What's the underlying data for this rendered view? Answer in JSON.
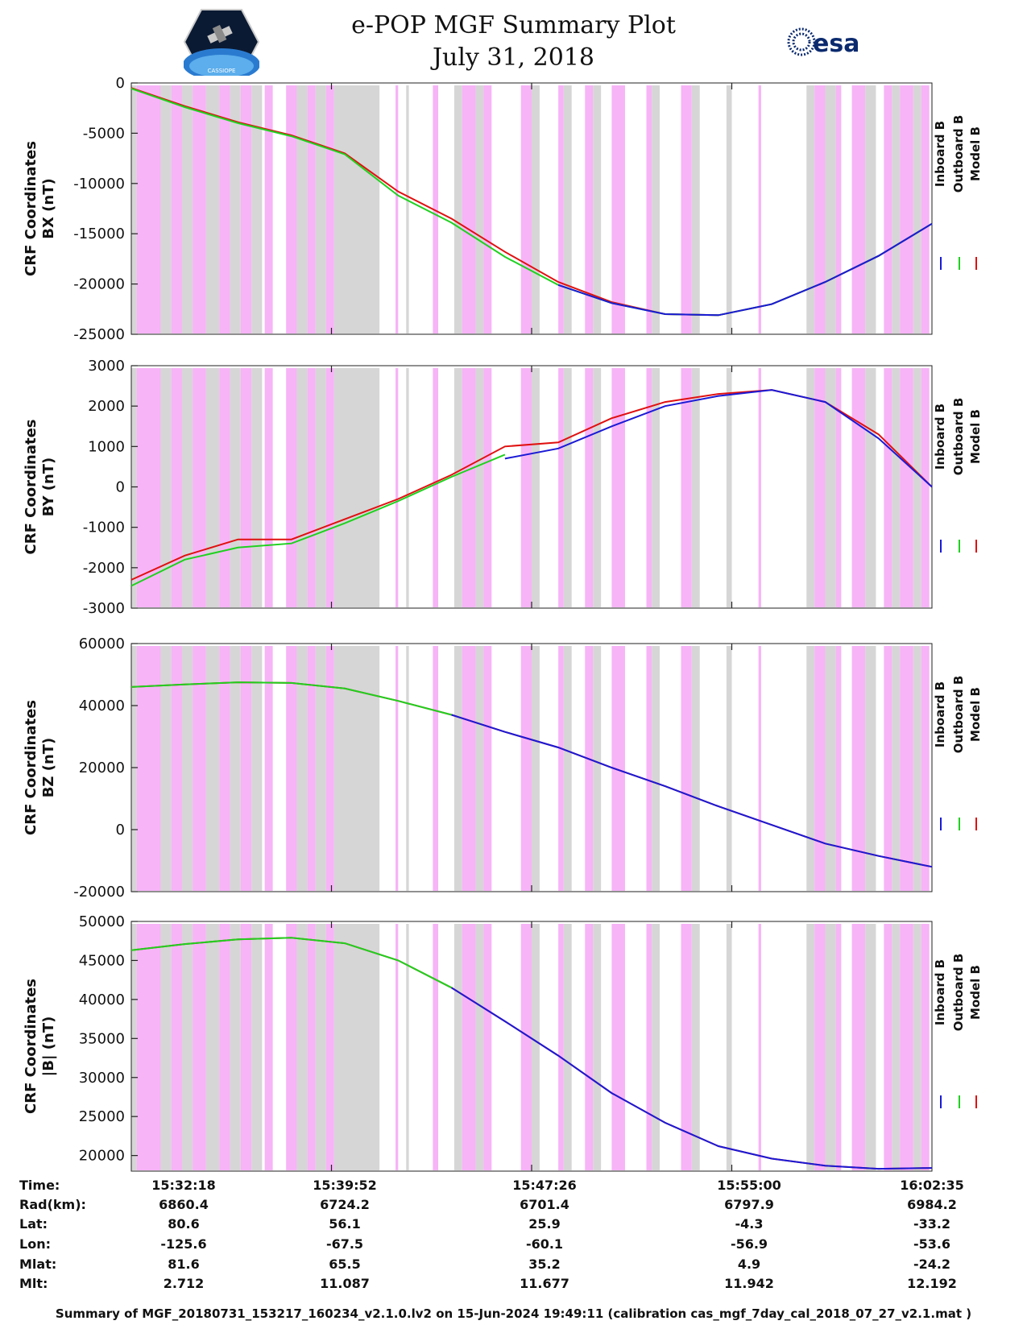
{
  "header": {
    "title": "e-POP MGF Summary Plot",
    "date": "July 31, 2018",
    "logo_left_text": "CASSIOPE",
    "logo_right_text": "esa"
  },
  "colors": {
    "inboard": "#1a1ad6",
    "outboard": "#1fd11f",
    "model": "#e01010",
    "pink_band": "#f7b4f7",
    "gray_band": "#d6d6d6"
  },
  "legend": [
    "Inboard B",
    "Outboard B",
    "Model B"
  ],
  "chart_data": [
    {
      "type": "line",
      "ylabel_line1": "CRF Coordinates",
      "ylabel_line2": "BX (nT)",
      "ylim": [
        -25000,
        0
      ],
      "yticks": [
        0,
        -5000,
        -10000,
        -15000,
        -20000,
        -25000
      ],
      "x_minutes": [
        0,
        2,
        4,
        6,
        8,
        10,
        12,
        14,
        16,
        18,
        20,
        22,
        24,
        26,
        28,
        30
      ],
      "series": [
        {
          "name": "Model B",
          "values": [
            -500,
            -2300,
            -3900,
            -5200,
            -7000,
            -10800,
            -13500,
            -16800,
            -19800,
            -21800,
            -23000,
            -23100,
            -22000,
            -19800,
            -17200,
            -14000
          ]
        },
        {
          "name": "Outboard B",
          "values": [
            -550,
            -2400,
            -4000,
            -5300,
            -7100,
            -11200,
            -13900,
            -17300,
            -20100,
            -21900,
            -23000,
            -23100,
            -22000,
            -19800,
            -17200,
            -14000
          ]
        },
        {
          "name": "Inboard B",
          "values": [
            null,
            null,
            null,
            null,
            null,
            null,
            null,
            null,
            -20100,
            -21900,
            -23000,
            -23100,
            -22000,
            -19800,
            -17200,
            -14000
          ]
        }
      ]
    },
    {
      "type": "line",
      "ylabel_line1": "CRF Coordinates",
      "ylabel_line2": "BY (nT)",
      "ylim": [
        -3000,
        3000
      ],
      "yticks": [
        3000,
        2000,
        1000,
        0,
        -1000,
        -2000,
        -3000
      ],
      "x_minutes": [
        0,
        2,
        4,
        6,
        8,
        10,
        12,
        14,
        16,
        18,
        20,
        22,
        24,
        26,
        28,
        30
      ],
      "series": [
        {
          "name": "Model B",
          "values": [
            -2300,
            -1700,
            -1300,
            -1300,
            -800,
            -300,
            300,
            1000,
            1100,
            1700,
            2100,
            2300,
            2400,
            2100,
            1300,
            0
          ]
        },
        {
          "name": "Outboard B",
          "values": [
            -2450,
            -1800,
            -1500,
            -1400,
            -900,
            -350,
            250,
            800,
            null,
            null,
            null,
            null,
            null,
            null,
            null,
            null
          ]
        },
        {
          "name": "Inboard B",
          "values": [
            null,
            null,
            null,
            null,
            null,
            null,
            null,
            700,
            950,
            1500,
            2000,
            2250,
            2400,
            2100,
            1200,
            0
          ]
        }
      ]
    },
    {
      "type": "line",
      "ylabel_line1": "CRF Coordinates",
      "ylabel_line2": "BZ (nT)",
      "ylim": [
        -20000,
        60000
      ],
      "yticks": [
        60000,
        40000,
        20000,
        0,
        -20000
      ],
      "x_minutes": [
        0,
        2,
        4,
        6,
        8,
        10,
        12,
        14,
        16,
        18,
        20,
        22,
        24,
        26,
        28,
        30
      ],
      "series": [
        {
          "name": "Model B",
          "values": [
            46000,
            46800,
            47500,
            47300,
            45500,
            41500,
            37000,
            31500,
            26500,
            20000,
            14000,
            7500,
            1500,
            -4500,
            -8500,
            -12000
          ]
        },
        {
          "name": "Outboard B",
          "values": [
            46000,
            46800,
            47500,
            47300,
            45500,
            41500,
            37000,
            null,
            null,
            null,
            null,
            null,
            null,
            null,
            null,
            null
          ]
        },
        {
          "name": "Inboard B",
          "values": [
            null,
            null,
            null,
            null,
            null,
            null,
            37000,
            31500,
            26500,
            20000,
            14000,
            7500,
            1500,
            -4500,
            -8500,
            -12000
          ]
        }
      ]
    },
    {
      "type": "line",
      "ylabel_line1": "CRF Coordinates",
      "ylabel_line2": "|B| (nT)",
      "ylim": [
        18000,
        50000
      ],
      "yticks": [
        50000,
        45000,
        40000,
        35000,
        30000,
        25000,
        20000
      ],
      "x_minutes": [
        0,
        2,
        4,
        6,
        8,
        10,
        12,
        14,
        16,
        18,
        20,
        22,
        24,
        26,
        28,
        30
      ],
      "series": [
        {
          "name": "Model B",
          "values": [
            46300,
            47100,
            47700,
            47900,
            47200,
            45000,
            41500,
            37200,
            32800,
            28000,
            24200,
            21200,
            19600,
            18700,
            18300,
            18400
          ]
        },
        {
          "name": "Outboard B",
          "values": [
            46300,
            47100,
            47700,
            47900,
            47200,
            45000,
            41500,
            null,
            null,
            null,
            null,
            null,
            null,
            null,
            null,
            null
          ]
        },
        {
          "name": "Inboard B",
          "values": [
            null,
            null,
            null,
            null,
            null,
            null,
            41500,
            37200,
            32800,
            28000,
            24200,
            21200,
            19600,
            18700,
            18300,
            18400
          ]
        }
      ]
    }
  ],
  "bands": {
    "x_span_minutes": 30,
    "pink": [
      [
        0.2,
        1.1
      ],
      [
        1.5,
        1.9
      ],
      [
        2.3,
        2.8
      ],
      [
        3.3,
        3.7
      ],
      [
        4.1,
        4.5
      ],
      [
        5.0,
        5.3
      ],
      [
        5.8,
        6.2
      ],
      [
        6.6,
        6.9
      ],
      [
        7.3,
        7.6
      ],
      [
        9.9,
        10.0
      ],
      [
        11.3,
        11.5
      ],
      [
        12.4,
        12.9
      ],
      [
        13.2,
        13.5
      ],
      [
        14.6,
        15.0
      ],
      [
        16.0,
        16.2
      ],
      [
        17.0,
        17.3
      ],
      [
        18.0,
        18.5
      ],
      [
        19.3,
        19.5
      ],
      [
        20.6,
        21.0
      ],
      [
        23.5,
        23.6
      ],
      [
        25.6,
        26.0
      ],
      [
        26.4,
        26.6
      ],
      [
        27.0,
        27.5
      ],
      [
        28.2,
        28.5
      ],
      [
        28.8,
        29.3
      ],
      [
        29.6,
        29.9
      ]
    ],
    "gray": [
      [
        0.0,
        0.2
      ],
      [
        1.1,
        1.5
      ],
      [
        1.9,
        2.3
      ],
      [
        2.8,
        3.3
      ],
      [
        3.7,
        4.1
      ],
      [
        4.5,
        4.9
      ],
      [
        6.2,
        6.6
      ],
      [
        6.9,
        7.3
      ],
      [
        7.6,
        9.3
      ],
      [
        10.3,
        10.4
      ],
      [
        12.1,
        12.4
      ],
      [
        12.9,
        13.2
      ],
      [
        15.0,
        15.3
      ],
      [
        16.2,
        16.5
      ],
      [
        17.3,
        17.6
      ],
      [
        19.5,
        19.8
      ],
      [
        21.0,
        21.3
      ],
      [
        22.3,
        22.5
      ],
      [
        25.3,
        25.6
      ],
      [
        26.0,
        26.4
      ],
      [
        27.5,
        27.9
      ],
      [
        28.5,
        28.8
      ],
      [
        29.3,
        29.6
      ]
    ]
  },
  "info_table": {
    "row_labels": [
      "Time:",
      "Rad(km):",
      "Lat:",
      "Lon:",
      "Mlat:",
      "Mlt:"
    ],
    "columns": [
      [
        "15:32:18",
        "6860.4",
        "80.6",
        "-125.6",
        "81.6",
        "2.712"
      ],
      [
        "15:39:52",
        "6724.2",
        "56.1",
        "-67.5",
        "65.5",
        "11.087"
      ],
      [
        "15:47:26",
        "6701.4",
        "25.9",
        "-60.1",
        "35.2",
        "11.677"
      ],
      [
        "15:55:00",
        "6797.9",
        "-4.3",
        "-56.9",
        "4.9",
        "11.942"
      ],
      [
        "16:02:35",
        "6984.2",
        "-33.2",
        "-53.6",
        "-24.2",
        "12.192"
      ]
    ]
  },
  "footer": "Summary of MGF_20180731_153217_160234_v2.1.0.lv2 on 15-Jun-2024 19:49:11 (calibration cas_mgf_7day_cal_2018_07_27_v2.1.mat )"
}
